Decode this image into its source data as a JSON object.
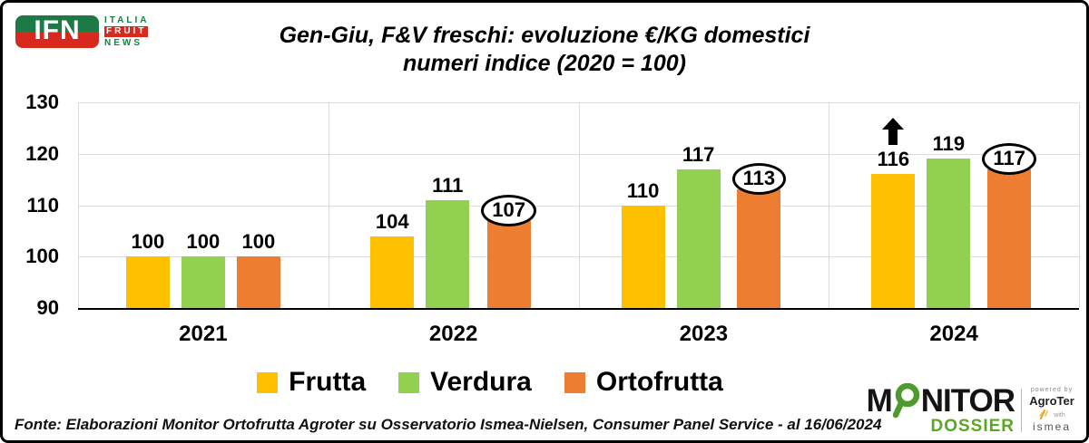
{
  "header": {
    "ifn_logo": {
      "abbrev": "IFN",
      "italia": "ITALIA",
      "fruit": "FRUIT",
      "news": "NEWS"
    },
    "title_line1": "Gen-Giu, F&V freschi: evoluzione €/KG domestici",
    "title_line2": "numeri indice (2020 = 100)"
  },
  "chart_data": {
    "type": "bar",
    "title": "Gen-Giu, F&V freschi: evoluzione €/KG domestici — numeri indice (2020 = 100)",
    "categories": [
      "2021",
      "2022",
      "2023",
      "2024"
    ],
    "series": [
      {
        "name": "Frutta",
        "color": "#FFC000",
        "values": [
          100,
          104,
          110,
          116
        ],
        "arrow_marker": [
          false,
          false,
          false,
          true
        ]
      },
      {
        "name": "Verdura",
        "color": "#92D050",
        "values": [
          100,
          111,
          117,
          119
        ]
      },
      {
        "name": "Ortofrutta",
        "color": "#ED7D31",
        "values": [
          100,
          107,
          113,
          117
        ],
        "circled": [
          false,
          true,
          true,
          true
        ]
      }
    ],
    "xlabel": "",
    "ylabel": "",
    "ylim": [
      90,
      130
    ],
    "yticks": [
      90,
      100,
      110,
      120,
      130
    ],
    "grid": true,
    "legend_position": "bottom"
  },
  "footer": {
    "source": "Fonte: Elaborazioni Monitor Ortofrutta Agroter su Osservatorio Ismea-Nielsen, Consumer Panel Service - al 16/06/2024"
  },
  "branding": {
    "monitor": {
      "m": "M",
      "nitor": "NITOR",
      "dossier": "DOSSIER"
    },
    "powered_by": "powered by",
    "agroter": "AgroTer",
    "with": "with",
    "ismea": "ismea"
  },
  "colors": {
    "frutta": "#FFC000",
    "verdura": "#92D050",
    "ortofrutta": "#ED7D31",
    "ifn_green": "#1E7A44",
    "ifn_red": "#D7291D",
    "dossier_green": "#5AA81E",
    "gridline": "#DCDCDC"
  }
}
